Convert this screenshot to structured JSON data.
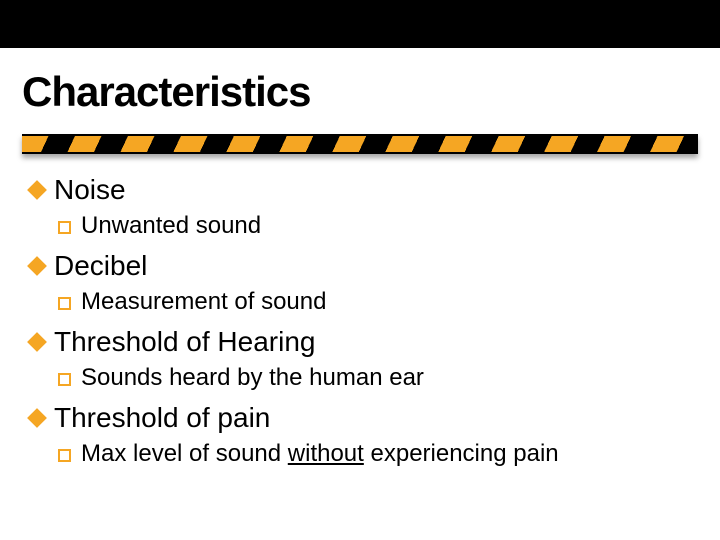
{
  "title": "Characteristics",
  "colors": {
    "accent": "#f5a623",
    "black": "#000000",
    "white": "#ffffff"
  },
  "items": [
    {
      "label": "Noise",
      "sub": {
        "pre": "Unwanted sound",
        "underline": "",
        "post": ""
      }
    },
    {
      "label": "Decibel",
      "sub": {
        "pre": "Measurement of sound",
        "underline": "",
        "post": ""
      }
    },
    {
      "label": "Threshold of Hearing",
      "sub": {
        "pre": "Sounds heard by the human ear",
        "underline": "",
        "post": ""
      }
    },
    {
      "label": "Threshold of pain",
      "sub": {
        "pre": "Max level of sound ",
        "underline": "without",
        "post": " experiencing pain"
      }
    }
  ]
}
